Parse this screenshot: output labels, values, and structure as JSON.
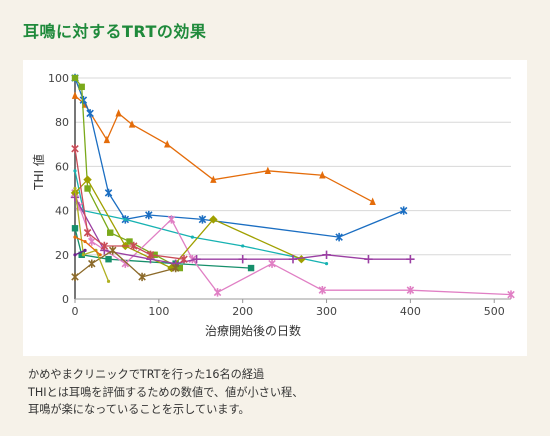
{
  "title": "耳鳴に対するTRTの効果",
  "caption": [
    "かめやまクリニックでTRTを行った16名の経過",
    "THIとは耳鳴を評価するための数値で、値が小さい程、",
    "耳鳴が楽になっていることを示しています。"
  ],
  "chart_data": {
    "type": "line",
    "xlabel": "治療開始後の日数",
    "ylabel": "THI 値",
    "xlim": [
      0,
      520
    ],
    "ylim": [
      0,
      100
    ],
    "xticks": [
      0,
      100,
      200,
      300,
      400,
      500
    ],
    "yticks": [
      0,
      20,
      40,
      60,
      80,
      100
    ],
    "grid": "horizontal",
    "series": [
      {
        "color": "#e46c0a",
        "marker": "triangle",
        "x": [
          0,
          12,
          38,
          52,
          68,
          110,
          165,
          230,
          295,
          355
        ],
        "y": [
          92,
          88,
          72,
          84,
          79,
          70,
          54,
          58,
          56,
          44
        ]
      },
      {
        "color": "#1b6ec2",
        "marker": "star",
        "x": [
          0,
          10,
          18,
          40,
          60,
          88,
          152,
          315,
          392
        ],
        "y": [
          100,
          90,
          84,
          48,
          36,
          38,
          36,
          28,
          40
        ]
      },
      {
        "color": "#7aa91a",
        "marker": "square",
        "x": [
          0,
          8,
          15,
          42,
          65,
          95,
          125
        ],
        "y": [
          100,
          96,
          50,
          30,
          26,
          20,
          14
        ]
      },
      {
        "color": "#17b2b2",
        "marker": "none",
        "x": [
          0,
          10,
          60,
          140,
          200,
          300
        ],
        "y": [
          58,
          40,
          36,
          28,
          24,
          16
        ]
      },
      {
        "color": "#168f6b",
        "marker": "square",
        "x": [
          0,
          8,
          40,
          120,
          210
        ],
        "y": [
          32,
          20,
          18,
          16,
          14
        ]
      },
      {
        "color": "#e07fc4",
        "marker": "star",
        "x": [
          0,
          5,
          20,
          60,
          115,
          140,
          170,
          235,
          295,
          400,
          520
        ],
        "y": [
          48,
          42,
          26,
          16,
          36,
          18,
          3,
          16,
          4,
          4,
          2
        ]
      },
      {
        "color": "#a0a000",
        "marker": "diamond",
        "x": [
          0,
          15,
          60,
          115,
          165,
          270
        ],
        "y": [
          48,
          54,
          24,
          14,
          36,
          18
        ]
      },
      {
        "color": "#9b3fa3",
        "marker": "plus",
        "x": [
          0,
          35,
          90,
          120,
          145,
          200,
          260,
          300,
          350,
          400
        ],
        "y": [
          46,
          22,
          18,
          16,
          18,
          18,
          18,
          20,
          18,
          18
        ]
      },
      {
        "color": "#c94b57",
        "marker": "star",
        "x": [
          0,
          15,
          35,
          70,
          90,
          130
        ],
        "y": [
          68,
          30,
          24,
          24,
          20,
          18
        ]
      },
      {
        "color": "#8c6a2a",
        "marker": "star",
        "x": [
          0,
          20,
          45,
          80,
          120
        ],
        "y": [
          10,
          16,
          22,
          10,
          14
        ]
      },
      {
        "color": "#b0b020",
        "marker": "none",
        "x": [
          0,
          10,
          25,
          40
        ],
        "y": [
          50,
          20,
          22,
          8
        ]
      },
      {
        "color": "#6a1f8a",
        "marker": "none",
        "x": [
          0,
          12
        ],
        "y": [
          20,
          22
        ]
      },
      {
        "color": "#e46c0a",
        "marker": "none",
        "x": [
          0,
          12,
          30
        ],
        "y": [
          28,
          26,
          20
        ]
      }
    ]
  }
}
